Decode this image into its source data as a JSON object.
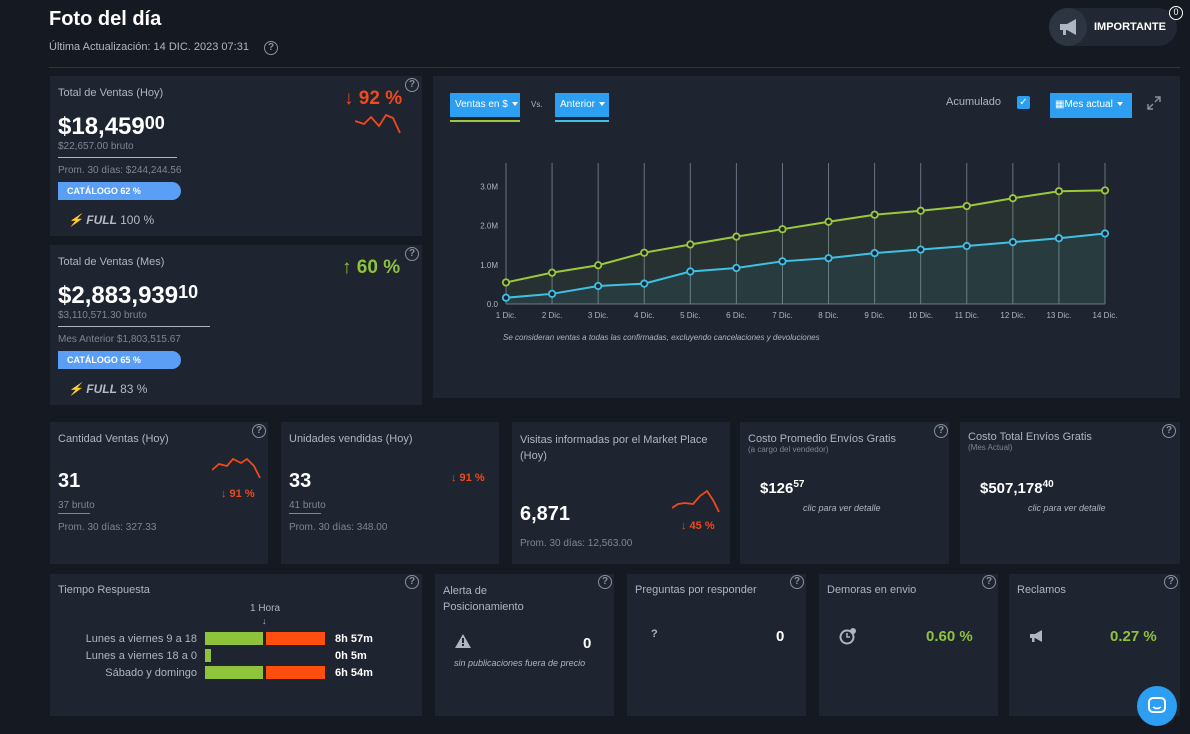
{
  "header": {
    "title": "Foto del día",
    "updated": "Última Actualización: 14 DIC. 2023 07:31",
    "important_label": "IMPORTANTE",
    "important_count": "0"
  },
  "ventas_hoy": {
    "title": "Total de Ventas (Hoy)",
    "amount": "$18,459",
    "cents": "00",
    "bruto": "$22,657.00 bruto",
    "prom": "Prom. 30 días: $244,244.56",
    "pct": "↓ 92 %",
    "catalog": "CATÁLOGO 62 %",
    "catalog_pct": 62,
    "full": "FULL",
    "full_pct": "100 %"
  },
  "ventas_mes": {
    "title": "Total de Ventas (Mes)",
    "amount": "$2,883,939",
    "cents": "10",
    "bruto": "$3,110,571.30 bruto",
    "prev": "Mes Anterior $1,803,515.67",
    "pct": "↑ 60 %",
    "catalog": "CATÁLOGO 65 %",
    "catalog_pct": 65,
    "full": "FULL",
    "full_pct": "83 %"
  },
  "chart_controls": {
    "series_a": "Ventas en $",
    "vs": "Vs.",
    "series_b": "Anterior",
    "accumulated": "Acumulado",
    "period": "Mes actual",
    "note": "Se consideran ventas a todas las confirmadas, excluyendo cancelaciones y devoluciones"
  },
  "chart_data": {
    "type": "area",
    "categories": [
      "1 Dic.",
      "2 Dic.",
      "3 Dic.",
      "4 Dic.",
      "5 Dic.",
      "6 Dic.",
      "7 Dic.",
      "8 Dic.",
      "9 Dic.",
      "10 Dic.",
      "11 Dic.",
      "12 Dic.",
      "13 Dic.",
      "14 Dic."
    ],
    "y_ticks": [
      "0.0",
      "1.0M",
      "2.0M",
      "3.0M"
    ],
    "ylim": [
      0,
      3600000
    ],
    "series": [
      {
        "values": [
          550000,
          800000,
          990000,
          1310000,
          1520000,
          1720000,
          1910000,
          2100000,
          2280000,
          2380000,
          2500000,
          2700000,
          2880000,
          2900000
        ],
        "color": "#9cc93a"
      },
      {
        "values": [
          160000,
          260000,
          460000,
          520000,
          830000,
          920000,
          1090000,
          1170000,
          1300000,
          1390000,
          1480000,
          1580000,
          1680000,
          1800000
        ],
        "color": "#3fc1e6"
      }
    ],
    "grid": "vertical"
  },
  "kpis": [
    {
      "title": "Cantidad Ventas (Hoy)",
      "value": "31",
      "sub": "37 bruto",
      "prom": "Prom. 30 días: 327.33",
      "pct": "↓ 91 %"
    },
    {
      "title": "Unidades vendidas (Hoy)",
      "value": "33",
      "sub": "41 bruto",
      "prom": "Prom. 30 días: 348.00",
      "pct": "↓ 91 %"
    },
    {
      "title": "Visitas informadas por el Market Place (Hoy)",
      "value": "6,871",
      "prom": "Prom. 30 días: 12,563.00",
      "pct": "↓ 45 %"
    },
    {
      "title": "Costo Promedio Envíos Gratis",
      "subtitle": "(a cargo del vendedor)",
      "value": "$126",
      "cents": "57",
      "link": "clic para ver detalle"
    },
    {
      "title": "Costo Total Envíos Gratis",
      "subtitle": "(Mes Actual)",
      "value": "$507,178",
      "cents": "40",
      "link": "clic para ver detalle"
    }
  ],
  "tiempo": {
    "title": "Tiempo Respuesta",
    "marker": "1 Hora",
    "rows": [
      {
        "label": "Lunes a viernes 9 a 18",
        "value": "8h 57m",
        "green": 1.0,
        "red": 1.0
      },
      {
        "label": "Lunes a viernes 18 a 0",
        "value": "0h 5m",
        "green": 0.08,
        "red": 0
      },
      {
        "label": "Sábado y domingo",
        "value": "6h 54m",
        "green": 1.0,
        "red": 1.0
      }
    ]
  },
  "alerta": {
    "title": "Alerta de Posicionamiento",
    "value": "0",
    "link": "sin publicaciones fuera de precio"
  },
  "preguntas": {
    "title": "Preguntas por responder",
    "value": "0"
  },
  "demoras": {
    "title": "Demoras en envio",
    "value": "0.60 %"
  },
  "reclamos": {
    "title": "Reclamos",
    "value": "0.27 %"
  }
}
